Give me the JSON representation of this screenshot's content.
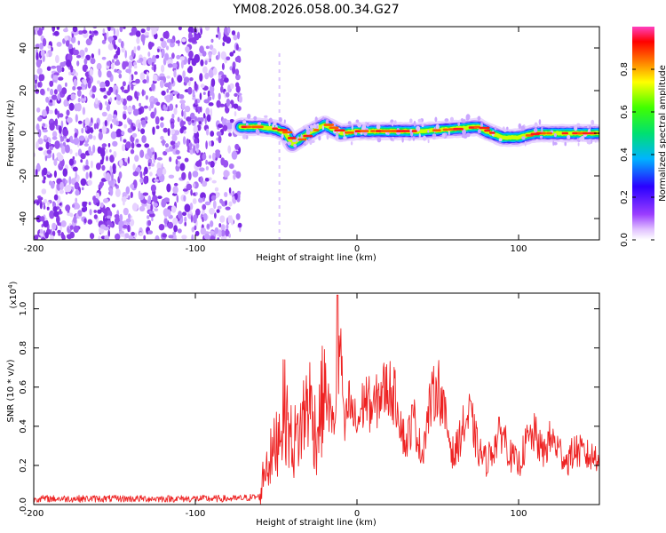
{
  "title": "YM08.2026.058.00.34.G27",
  "chart_data": [
    {
      "type": "heatmap",
      "panel": "top",
      "xlabel": "Height of straight line (km)",
      "ylabel": "Frequency (Hz)",
      "xlim": [
        -200,
        150
      ],
      "ylim": [
        -50,
        50
      ],
      "xticks": [
        -200,
        -100,
        0,
        100
      ],
      "yticks": [
        -40,
        -20,
        0,
        20,
        40
      ],
      "colorbar": {
        "label": "Normalized spectral amplitude",
        "range": [
          0,
          1
        ],
        "ticks": [
          "0.0",
          "0.2",
          "0.4",
          "0.6",
          "0.8"
        ],
        "colormap": "rainbow (magenta-blue-cyan-green-yellow-red-magenta)"
      },
      "noise_region": {
        "x_from": -200,
        "x_to": -72,
        "description": "broadband low-amplitude noise"
      },
      "signal_track": {
        "description": "narrow high-amplitude line near 0-3 Hz",
        "x": [
          -72,
          -60,
          -50,
          -44,
          -40,
          -30,
          -20,
          -15,
          -10,
          0,
          20,
          40,
          60,
          75,
          80,
          90,
          100,
          110,
          130,
          150
        ],
        "freq": [
          3,
          3,
          2,
          0,
          -5,
          0,
          4,
          2,
          0,
          1,
          1,
          1,
          2,
          3,
          1,
          -2,
          -2,
          0,
          0,
          0
        ]
      }
    },
    {
      "type": "line",
      "panel": "bottom",
      "xlabel": "Height of straight line (km)",
      "ylabel": "SNR (10 * v/v)",
      "scale_label": "(x10",
      "scale_exp": "4",
      "xlim": [
        -200,
        150
      ],
      "ylim": [
        0,
        1.08
      ],
      "xticks": [
        -200,
        -100,
        0,
        100
      ],
      "yticks": [
        "0.0",
        "0.2",
        "0.4",
        "0.6",
        "0.8",
        "1.0"
      ],
      "series": [
        {
          "name": "SNR",
          "color": "#ee2222",
          "x": [
            -200,
            -150,
            -100,
            -75,
            -60,
            -57,
            -52,
            -45,
            -40,
            -35,
            -30,
            -25,
            -20,
            -15,
            -12,
            -10,
            -8,
            -5,
            0,
            5,
            10,
            15,
            20,
            25,
            30,
            35,
            40,
            45,
            50,
            55,
            60,
            65,
            70,
            75,
            80,
            85,
            90,
            95,
            100,
            105,
            110,
            115,
            120,
            125,
            130,
            135,
            140,
            145,
            150
          ],
          "values": [
            0.03,
            0.03,
            0.03,
            0.03,
            0.04,
            0.2,
            0.25,
            0.5,
            0.3,
            0.38,
            0.55,
            0.35,
            0.6,
            0.4,
            0.55,
            0.85,
            0.35,
            0.52,
            0.4,
            0.55,
            0.48,
            0.58,
            0.6,
            0.52,
            0.3,
            0.45,
            0.25,
            0.5,
            0.62,
            0.42,
            0.24,
            0.38,
            0.46,
            0.28,
            0.22,
            0.3,
            0.38,
            0.25,
            0.2,
            0.32,
            0.36,
            0.26,
            0.34,
            0.28,
            0.22,
            0.28,
            0.26,
            0.24,
            0.26
          ]
        }
      ]
    }
  ]
}
